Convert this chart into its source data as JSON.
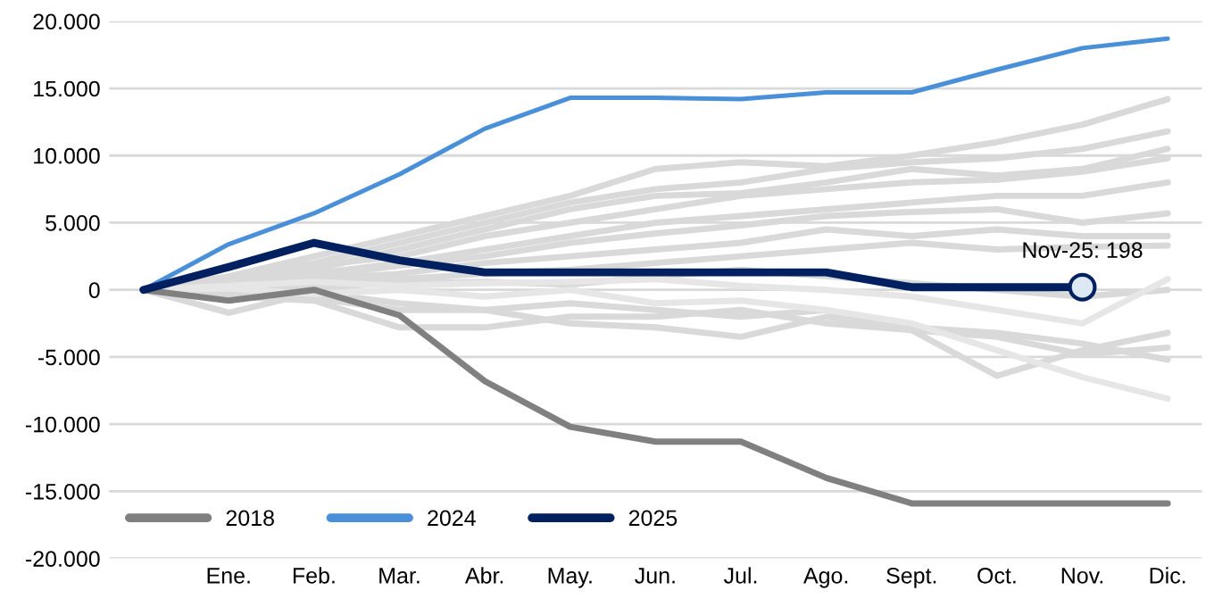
{
  "chart_data": {
    "type": "line",
    "categories": [
      null,
      "Ene.",
      "Feb.",
      "Mar.",
      "Abr.",
      "May.",
      "Jun.",
      "Jul.",
      "Ago.",
      "Sept.",
      "Oct.",
      "Nov.",
      "Dic."
    ],
    "series": [
      {
        "color": "#d9d9d9",
        "values": [
          0,
          1000,
          2500,
          4000,
          5500,
          7000,
          9000,
          9500,
          9200,
          10000,
          11000,
          12300,
          14200
        ]
      },
      {
        "color": "#d9d9d9",
        "values": [
          0,
          800,
          2000,
          3500,
          5000,
          6500,
          7500,
          8000,
          9000,
          9500,
          9800,
          10500,
          11800
        ]
      },
      {
        "color": "#d9d9d9",
        "values": [
          0,
          500,
          1500,
          3000,
          4500,
          6000,
          7000,
          7200,
          8000,
          9000,
          8500,
          9000,
          10500
        ]
      },
      {
        "color": "#d9d9d9",
        "values": [
          0,
          700,
          1800,
          2500,
          4000,
          5000,
          6000,
          7000,
          7500,
          8000,
          8200,
          8800,
          9800
        ]
      },
      {
        "color": "#d9d9d9",
        "values": [
          0,
          300,
          1200,
          2000,
          3000,
          4000,
          5000,
          5500,
          6000,
          6500,
          7000,
          7000,
          8000
        ]
      },
      {
        "color": "#d9d9d9",
        "values": [
          0,
          600,
          1000,
          1800,
          2500,
          3500,
          4200,
          4800,
          5500,
          5800,
          6000,
          5000,
          5700
        ]
      },
      {
        "color": "#d9d9d9",
        "values": [
          0,
          400,
          800,
          1200,
          2000,
          2500,
          3000,
          3500,
          4500,
          4000,
          4500,
          4000,
          4000
        ]
      },
      {
        "color": "#d9d9d9",
        "values": [
          0,
          200,
          500,
          800,
          1200,
          1500,
          2000,
          2500,
          3000,
          3500,
          3000,
          3200,
          3300
        ]
      },
      {
        "color": "#d9d9d9",
        "values": [
          0,
          -300,
          200,
          500,
          600,
          400,
          1000,
          1500,
          1000,
          500,
          0,
          -500,
          0
        ]
      },
      {
        "color": "#e6e6e6",
        "values": [
          0,
          300,
          600,
          300,
          500,
          600,
          800,
          300,
          0,
          -500,
          -1500,
          -2500,
          800
        ]
      },
      {
        "color": "#d9d9d9",
        "values": [
          0,
          -1700,
          -200,
          -1000,
          -1500,
          -1000,
          -1500,
          -2000,
          -1500,
          -3000,
          -6400,
          -4500,
          -3200
        ]
      },
      {
        "color": "#d9d9d9",
        "values": [
          0,
          -500,
          -800,
          -2800,
          -2800,
          -2000,
          -2000,
          -1500,
          -2500,
          -3000,
          -3500,
          -4800,
          -4300
        ]
      },
      {
        "color": "#d9d9d9",
        "values": [
          0,
          -200,
          -600,
          -1500,
          -1500,
          -2500,
          -2800,
          -3500,
          -2000,
          -2800,
          -3200,
          -4000,
          -5200
        ]
      },
      {
        "color": "#e6e6e6",
        "values": [
          0,
          100,
          -300,
          0,
          -500,
          0,
          -1000,
          -800,
          -1500,
          -2500,
          -4500,
          -6500,
          -8100
        ]
      },
      {
        "name": "2018",
        "color": "#808080",
        "values": [
          0,
          -800,
          0,
          -1900,
          -6800,
          -10200,
          -11300,
          -11300,
          -14000,
          -15900,
          -15900,
          -15900,
          -15900
        ]
      },
      {
        "name": "2024",
        "color": "#4a90d9",
        "values": [
          0,
          3400,
          5700,
          8600,
          12000,
          14300,
          14300,
          14200,
          14700,
          14700,
          16400,
          18000,
          18700
        ]
      },
      {
        "name": "2025",
        "color": "#002060",
        "values": [
          0,
          1700,
          3500,
          2200,
          1300,
          1300,
          1300,
          1300,
          1300,
          198,
          198,
          198,
          null
        ]
      }
    ],
    "ylim": [
      -20000,
      20000
    ],
    "yticks": [
      {
        "value": -20000,
        "label": "-20.000"
      },
      {
        "value": -15000,
        "label": "-15.000"
      },
      {
        "value": -10000,
        "label": "-10.000"
      },
      {
        "value": -5000,
        "label": "-5.000"
      },
      0,
      {
        "value": 5000,
        "label": "5.000"
      },
      {
        "value": 10000,
        "label": "10.000"
      },
      {
        "value": 15000,
        "label": "15.000"
      },
      {
        "value": 20000,
        "label": "20.000"
      }
    ],
    "annotations": [
      {
        "text": "Nov-25: 198",
        "x": "Nov.",
        "y": 198
      }
    ],
    "grid": "y",
    "legend": "bottom left"
  }
}
